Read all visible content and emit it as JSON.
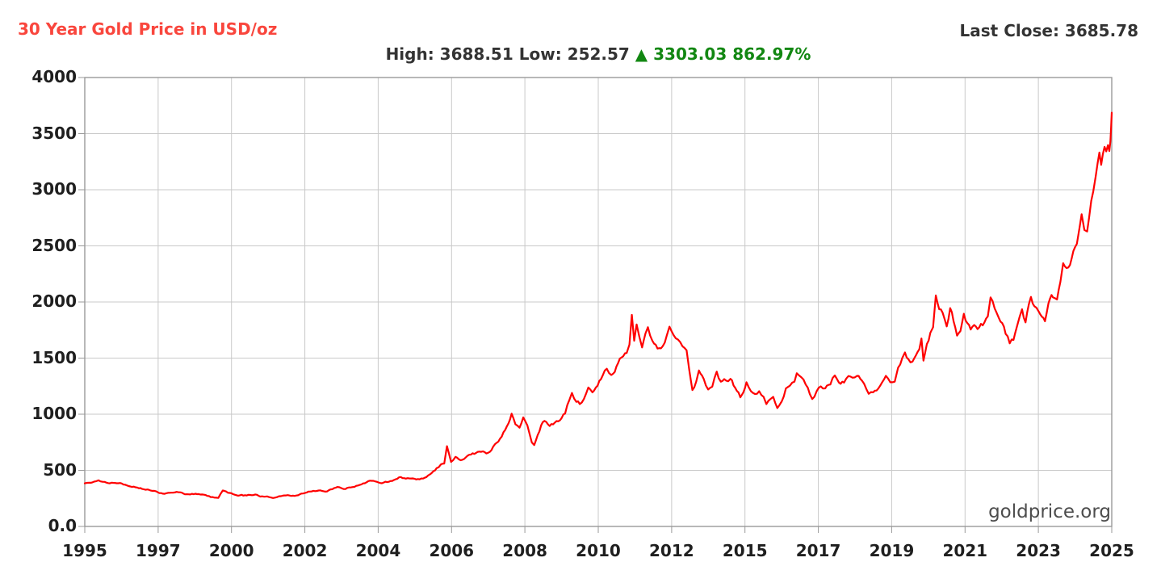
{
  "header": {
    "title": "30 Year Gold Price in USD/oz",
    "last_close": "Last Close: 3685.78",
    "stats_dark": "High: 3688.51 Low: 252.57",
    "stats_green": "▲ 3303.03 862.97%"
  },
  "watermark": "goldprice.org",
  "colors": {
    "title_red": "#f9463d",
    "line_red": "#ff0000",
    "stats_green": "#128712",
    "text_dark": "#333333",
    "tick_text": "#1f1f1f",
    "grid": "#c9c9c9",
    "axis": "#999999",
    "watermark": "#4d4d4d",
    "background": "#ffffff"
  },
  "chart_data": {
    "type": "line",
    "title": "30 Year Gold Price in USD/oz",
    "series_name": "Gold price (USD/oz)",
    "high": 3688.51,
    "low": 252.57,
    "last_close": 3685.78,
    "change": 3303.03,
    "change_percent": "862.97%",
    "grid": true,
    "legend_position": "none",
    "ylim": [
      0,
      4000
    ],
    "xlim_years": [
      1995.72,
      2025.72
    ],
    "y_tick_values": [
      0,
      500,
      1000,
      1500,
      2000,
      2500,
      3000,
      3500,
      4000
    ],
    "y_tick_labels": [
      "0.0",
      "500",
      "1000",
      "1500",
      "2000",
      "2500",
      "3000",
      "3500",
      "4000"
    ],
    "x_tick_labels": [
      "1995",
      "1997",
      "2000",
      "2002",
      "2004",
      "2006",
      "2008",
      "2010",
      "2012",
      "2015",
      "2017",
      "2019",
      "2021",
      "2023",
      "2025"
    ],
    "points": [
      [
        1995.72,
        384
      ],
      [
        1995.85,
        390
      ],
      [
        1996.0,
        400
      ],
      [
        1996.12,
        411
      ],
      [
        1996.3,
        397
      ],
      [
        1996.5,
        390
      ],
      [
        1996.7,
        385
      ],
      [
        1996.9,
        372
      ],
      [
        1997.1,
        352
      ],
      [
        1997.35,
        342
      ],
      [
        1997.6,
        326
      ],
      [
        1997.85,
        305
      ],
      [
        1998.0,
        292
      ],
      [
        1998.2,
        300
      ],
      [
        1998.4,
        308
      ],
      [
        1998.6,
        293
      ],
      [
        1998.8,
        285
      ],
      [
        1999.0,
        288
      ],
      [
        1999.2,
        283
      ],
      [
        1999.45,
        262
      ],
      [
        1999.62,
        254
      ],
      [
        1999.75,
        320
      ],
      [
        1999.9,
        300
      ],
      [
        2000.05,
        288
      ],
      [
        2000.25,
        278
      ],
      [
        2000.45,
        276
      ],
      [
        2000.7,
        285
      ],
      [
        2000.9,
        268
      ],
      [
        2001.1,
        262
      ],
      [
        2001.28,
        257
      ],
      [
        2001.45,
        270
      ],
      [
        2001.6,
        276
      ],
      [
        2001.75,
        272
      ],
      [
        2001.95,
        278
      ],
      [
        2002.15,
        298
      ],
      [
        2002.35,
        312
      ],
      [
        2002.55,
        320
      ],
      [
        2002.75,
        310
      ],
      [
        2002.95,
        332
      ],
      [
        2003.1,
        352
      ],
      [
        2003.28,
        334
      ],
      [
        2003.5,
        348
      ],
      [
        2003.7,
        365
      ],
      [
        2003.9,
        385
      ],
      [
        2004.05,
        408
      ],
      [
        2004.25,
        398
      ],
      [
        2004.4,
        385
      ],
      [
        2004.6,
        398
      ],
      [
        2004.8,
        420
      ],
      [
        2004.95,
        440
      ],
      [
        2005.1,
        426
      ],
      [
        2005.3,
        428
      ],
      [
        2005.5,
        420
      ],
      [
        2005.7,
        440
      ],
      [
        2005.85,
        475
      ],
      [
        2006.0,
        520
      ],
      [
        2006.12,
        552
      ],
      [
        2006.22,
        560
      ],
      [
        2006.3,
        715
      ],
      [
        2006.42,
        575
      ],
      [
        2006.55,
        620
      ],
      [
        2006.7,
        590
      ],
      [
        2006.85,
        615
      ],
      [
        2007.0,
        640
      ],
      [
        2007.15,
        655
      ],
      [
        2007.3,
        665
      ],
      [
        2007.45,
        650
      ],
      [
        2007.6,
        680
      ],
      [
        2007.75,
        745
      ],
      [
        2007.9,
        800
      ],
      [
        2008.0,
        860
      ],
      [
        2008.1,
        920
      ],
      [
        2008.19,
        1005
      ],
      [
        2008.3,
        910
      ],
      [
        2008.42,
        880
      ],
      [
        2008.53,
        972
      ],
      [
        2008.65,
        900
      ],
      [
        2008.78,
        748
      ],
      [
        2008.85,
        725
      ],
      [
        2008.95,
        815
      ],
      [
        2009.05,
        900
      ],
      [
        2009.15,
        940
      ],
      [
        2009.3,
        895
      ],
      [
        2009.45,
        925
      ],
      [
        2009.6,
        945
      ],
      [
        2009.75,
        1005
      ],
      [
        2009.88,
        1130
      ],
      [
        2009.95,
        1190
      ],
      [
        2010.08,
        1110
      ],
      [
        2010.18,
        1090
      ],
      [
        2010.3,
        1135
      ],
      [
        2010.43,
        1238
      ],
      [
        2010.55,
        1195
      ],
      [
        2010.7,
        1255
      ],
      [
        2010.85,
        1345
      ],
      [
        2010.97,
        1405
      ],
      [
        2011.1,
        1350
      ],
      [
        2011.25,
        1425
      ],
      [
        2011.4,
        1505
      ],
      [
        2011.55,
        1545
      ],
      [
        2011.63,
        1620
      ],
      [
        2011.7,
        1885
      ],
      [
        2011.77,
        1655
      ],
      [
        2011.84,
        1800
      ],
      [
        2011.92,
        1690
      ],
      [
        2012.0,
        1595
      ],
      [
        2012.1,
        1720
      ],
      [
        2012.17,
        1775
      ],
      [
        2012.3,
        1655
      ],
      [
        2012.45,
        1585
      ],
      [
        2012.6,
        1605
      ],
      [
        2012.72,
        1700
      ],
      [
        2012.8,
        1780
      ],
      [
        2012.92,
        1705
      ],
      [
        2013.05,
        1665
      ],
      [
        2013.18,
        1605
      ],
      [
        2013.3,
        1570
      ],
      [
        2013.38,
        1390
      ],
      [
        2013.47,
        1215
      ],
      [
        2013.58,
        1290
      ],
      [
        2013.66,
        1390
      ],
      [
        2013.8,
        1315
      ],
      [
        2013.93,
        1220
      ],
      [
        2014.05,
        1245
      ],
      [
        2014.18,
        1380
      ],
      [
        2014.3,
        1290
      ],
      [
        2014.45,
        1300
      ],
      [
        2014.58,
        1315
      ],
      [
        2014.72,
        1235
      ],
      [
        2014.87,
        1150
      ],
      [
        2014.95,
        1190
      ],
      [
        2015.05,
        1285
      ],
      [
        2015.18,
        1205
      ],
      [
        2015.3,
        1180
      ],
      [
        2015.42,
        1205
      ],
      [
        2015.55,
        1155
      ],
      [
        2015.63,
        1090
      ],
      [
        2015.75,
        1135
      ],
      [
        2015.83,
        1155
      ],
      [
        2015.95,
        1055
      ],
      [
        2016.08,
        1115
      ],
      [
        2016.2,
        1230
      ],
      [
        2016.32,
        1255
      ],
      [
        2016.45,
        1290
      ],
      [
        2016.52,
        1365
      ],
      [
        2016.65,
        1330
      ],
      [
        2016.78,
        1265
      ],
      [
        2016.9,
        1180
      ],
      [
        2016.97,
        1135
      ],
      [
        2017.1,
        1205
      ],
      [
        2017.22,
        1248
      ],
      [
        2017.35,
        1230
      ],
      [
        2017.5,
        1265
      ],
      [
        2017.63,
        1345
      ],
      [
        2017.75,
        1282
      ],
      [
        2017.9,
        1282
      ],
      [
        2018.03,
        1340
      ],
      [
        2018.15,
        1325
      ],
      [
        2018.28,
        1342
      ],
      [
        2018.42,
        1300
      ],
      [
        2018.55,
        1225
      ],
      [
        2018.62,
        1182
      ],
      [
        2018.75,
        1195
      ],
      [
        2018.9,
        1228
      ],
      [
        2019.02,
        1288
      ],
      [
        2019.12,
        1342
      ],
      [
        2019.25,
        1285
      ],
      [
        2019.38,
        1290
      ],
      [
        2019.48,
        1415
      ],
      [
        2019.6,
        1500
      ],
      [
        2019.68,
        1550
      ],
      [
        2019.78,
        1490
      ],
      [
        2019.9,
        1468
      ],
      [
        2020.0,
        1525
      ],
      [
        2020.1,
        1580
      ],
      [
        2020.16,
        1675
      ],
      [
        2020.22,
        1478
      ],
      [
        2020.32,
        1625
      ],
      [
        2020.42,
        1725
      ],
      [
        2020.5,
        1775
      ],
      [
        2020.58,
        2058
      ],
      [
        2020.68,
        1935
      ],
      [
        2020.78,
        1905
      ],
      [
        2020.9,
        1782
      ],
      [
        2021.0,
        1945
      ],
      [
        2021.1,
        1828
      ],
      [
        2021.2,
        1700
      ],
      [
        2021.3,
        1742
      ],
      [
        2021.4,
        1895
      ],
      [
        2021.5,
        1812
      ],
      [
        2021.6,
        1755
      ],
      [
        2021.7,
        1795
      ],
      [
        2021.8,
        1758
      ],
      [
        2021.9,
        1805
      ],
      [
        2022.0,
        1818
      ],
      [
        2022.1,
        1872
      ],
      [
        2022.18,
        2040
      ],
      [
        2022.3,
        1942
      ],
      [
        2022.42,
        1858
      ],
      [
        2022.52,
        1812
      ],
      [
        2022.62,
        1715
      ],
      [
        2022.74,
        1632
      ],
      [
        2022.85,
        1662
      ],
      [
        2022.95,
        1782
      ],
      [
        2023.03,
        1868
      ],
      [
        2023.1,
        1935
      ],
      [
        2023.2,
        1818
      ],
      [
        2023.3,
        1982
      ],
      [
        2023.36,
        2045
      ],
      [
        2023.46,
        1962
      ],
      [
        2023.58,
        1918
      ],
      [
        2023.68,
        1868
      ],
      [
        2023.77,
        1828
      ],
      [
        2023.87,
        1988
      ],
      [
        2023.96,
        2062
      ],
      [
        2024.05,
        2035
      ],
      [
        2024.12,
        2022
      ],
      [
        2024.22,
        2180
      ],
      [
        2024.3,
        2345
      ],
      [
        2024.4,
        2302
      ],
      [
        2024.5,
        2330
      ],
      [
        2024.6,
        2455
      ],
      [
        2024.7,
        2518
      ],
      [
        2024.78,
        2662
      ],
      [
        2024.84,
        2782
      ],
      [
        2024.92,
        2642
      ],
      [
        2025.0,
        2628
      ],
      [
        2025.06,
        2755
      ],
      [
        2025.12,
        2902
      ],
      [
        2025.18,
        2985
      ],
      [
        2025.25,
        3118
      ],
      [
        2025.31,
        3242
      ],
      [
        2025.36,
        3332
      ],
      [
        2025.41,
        3222
      ],
      [
        2025.46,
        3318
      ],
      [
        2025.51,
        3382
      ],
      [
        2025.56,
        3342
      ],
      [
        2025.61,
        3398
      ],
      [
        2025.65,
        3345
      ],
      [
        2025.68,
        3428
      ],
      [
        2025.7,
        3555
      ],
      [
        2025.72,
        3686
      ]
    ]
  }
}
